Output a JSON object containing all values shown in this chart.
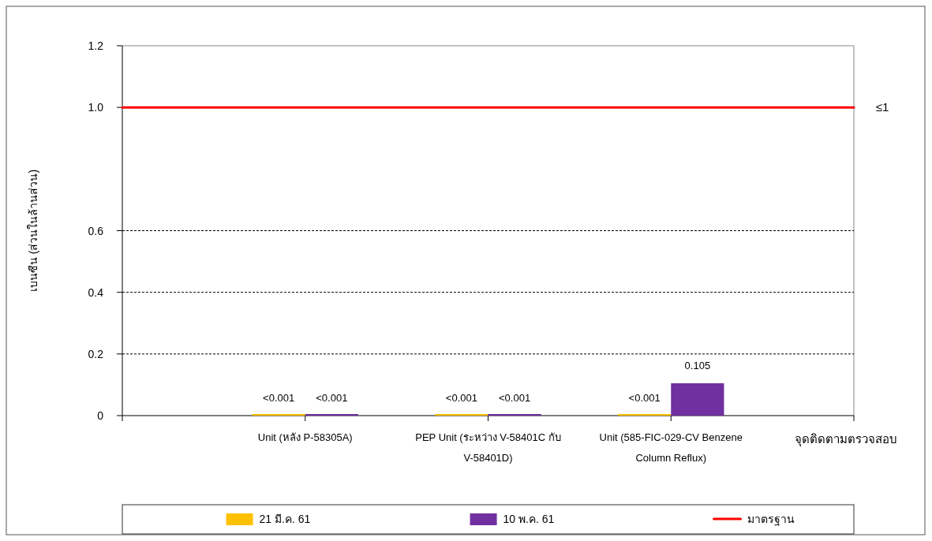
{
  "chart_data": {
    "type": "bar",
    "ylabel": "เบนซีน (ส่วนในล้านส่วน)",
    "xlabel": "จุดติดตามตรวจสอบ",
    "categories": [
      "Unit (หลัง P-58305A)",
      "PEP Unit (ระหว่าง V-58401C กับ V-58401D)",
      "Unit (585-FIC-029-CV Benzene Column Reflux)"
    ],
    "series": [
      {
        "name": "21 มี.ค. 61",
        "color": "#ffc000",
        "values": [
          0.001,
          0.001,
          0.001
        ],
        "value_labels": [
          "<0.001",
          "<0.001",
          "<0.001"
        ]
      },
      {
        "name": "10 พ.ค. 61",
        "color": "#7030a0",
        "values": [
          0.001,
          0.001,
          0.105
        ],
        "value_labels": [
          "<0.001",
          "<0.001",
          "0.105"
        ]
      }
    ],
    "ylim": [
      0,
      1.2
    ],
    "yticks": [
      0,
      {
        "value": 0.2,
        "label": "0.2"
      },
      {
        "value": 0.4,
        "label": "0.4"
      },
      {
        "value": 0.6,
        "label": "0.6"
      },
      {
        "value": 1,
        "label": "1.0"
      },
      {
        "value": 1.2,
        "label": "1.2"
      }
    ],
    "grid": "y",
    "ref_lines": [
      {
        "axis": "y",
        "value": 1,
        "label": "มาตรฐาน",
        "color": "#ff0000",
        "line_style": "solid"
      }
    ],
    "annotations": [
      "≤1"
    ],
    "legend": "bottom"
  }
}
